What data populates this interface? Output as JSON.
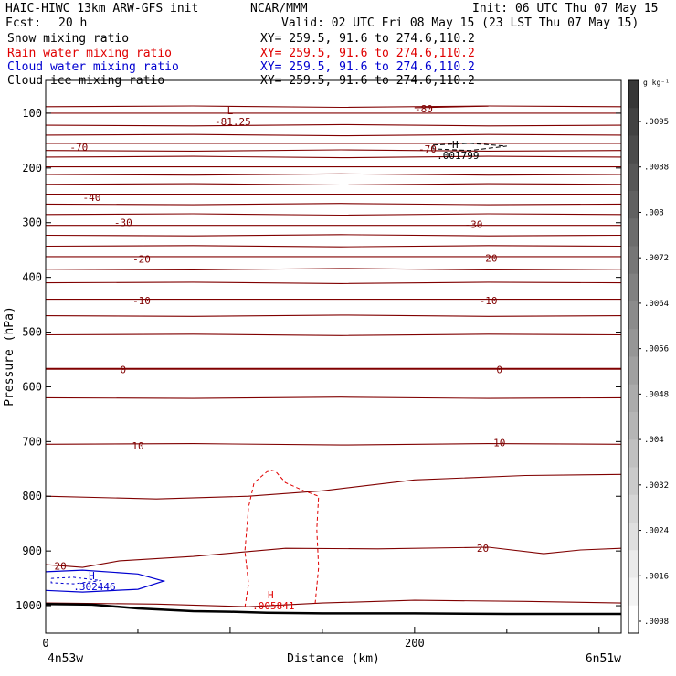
{
  "header": {
    "title_left": "HAIC-HIWC 13km ARW-GFS init",
    "title_center": "NCAR/MMM",
    "init": "Init: 06 UTC Thu 07 May 15",
    "fcst_label": "Fcst:",
    "fcst_value": "20 h",
    "valid": "Valid: 02 UTC Fri 08 May 15 (23 LST Thu 07 May 15)"
  },
  "fields": [
    {
      "name": "Snow mixing ratio",
      "xy": "XY= 259.5, 91.6 to 274.6,110.2",
      "color": "#000000"
    },
    {
      "name": "Rain water mixing ratio",
      "xy": "XY= 259.5, 91.6 to 274.6,110.2",
      "color": "#e00000"
    },
    {
      "name": "Cloud water mixing ratio",
      "xy": "XY= 259.5, 91.6 to 274.6,110.2",
      "color": "#0000d0"
    },
    {
      "name": "Cloud ice mixing ratio",
      "xy": "XY= 259.5, 91.6 to 274.6,110.2",
      "color": "#000000"
    }
  ],
  "chart_data": {
    "type": "contour",
    "xlabel": "Distance (km)",
    "ylabel": "Pressure (hPa)",
    "x_ticks": [
      0,
      200
    ],
    "xlim": [
      0,
      312
    ],
    "y_ticks": [
      100,
      200,
      300,
      400,
      500,
      600,
      700,
      800,
      900,
      1000
    ],
    "ylim": [
      1050,
      40
    ],
    "endpoint_left": "4n53w",
    "endpoint_right": "6n51w",
    "temperature_labels": [
      {
        "text": "-80",
        "x": 205,
        "p": 92
      },
      {
        "text": "-70",
        "x": 18,
        "p": 162
      },
      {
        "text": "-70",
        "x": 207,
        "p": 165
      },
      {
        "text": "-40",
        "x": 25,
        "p": 254
      },
      {
        "text": "-30",
        "x": 42,
        "p": 300
      },
      {
        "text": "-30",
        "x": 232,
        "p": 303
      },
      {
        "text": "-20",
        "x": 52,
        "p": 366
      },
      {
        "text": "-20",
        "x": 240,
        "p": 365
      },
      {
        "text": "-10",
        "x": 52,
        "p": 442
      },
      {
        "text": "-10",
        "x": 240,
        "p": 442
      },
      {
        "text": "0",
        "x": 42,
        "p": 568
      },
      {
        "text": "0",
        "x": 246,
        "p": 568
      },
      {
        "text": "10",
        "x": 50,
        "p": 708
      },
      {
        "text": "10",
        "x": 246,
        "p": 702
      },
      {
        "text": "20",
        "x": 237,
        "p": 895
      },
      {
        "text": "20",
        "x": 8,
        "p": 927
      }
    ],
    "extrema": [
      {
        "mark": "L",
        "value": "-81.25",
        "x": 100,
        "p": 105,
        "color": "#800000"
      },
      {
        "mark": "H",
        "value": ".001799",
        "x": 222,
        "p": 167,
        "color": "#000000"
      },
      {
        "mark": "H",
        "value": ".302446",
        "x": 25,
        "p": 955,
        "color": "#0000d0"
      },
      {
        "mark": "H",
        "value": ".005841",
        "x": 122,
        "p": 990,
        "color": "#e00000"
      }
    ],
    "colorbar": {
      "unit": "g kg⁻¹",
      "labels": [
        ".0095",
        ".0088",
        ".008",
        ".0072",
        ".0064",
        ".0056",
        ".0048",
        ".004",
        ".0032",
        ".0024",
        ".0016",
        ".0008"
      ]
    }
  }
}
